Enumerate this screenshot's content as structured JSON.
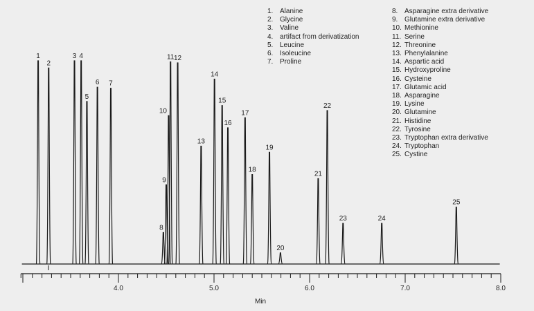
{
  "chart_data": {
    "type": "line",
    "title": "",
    "xlabel": "Min",
    "ylabel": "",
    "xlim": [
      2.98,
      8.0
    ],
    "ylim": [
      0,
      100
    ],
    "x_ticks": [
      "4.0",
      "5.0",
      "6.0",
      "7.0",
      "8.0"
    ],
    "x_tick_values": [
      4.0,
      5.0,
      6.0,
      7.0,
      8.0
    ],
    "minor_tick_step": 0.1,
    "grid": false,
    "peaks": [
      {
        "label": "1",
        "rt": 3.16,
        "height": 100
      },
      {
        "label": "2",
        "rt": 3.27,
        "height": 96.5
      },
      {
        "label": "3",
        "rt": 3.54,
        "height": 100
      },
      {
        "label": "4",
        "rt": 3.61,
        "height": 100
      },
      {
        "label": "5",
        "rt": 3.67,
        "height": 80
      },
      {
        "label": "6",
        "rt": 3.78,
        "height": 87
      },
      {
        "label": "7",
        "rt": 3.92,
        "height": 86.5
      },
      {
        "label": "8",
        "rt": 4.47,
        "height": 15.5
      },
      {
        "label": "9",
        "rt": 4.5,
        "height": 39
      },
      {
        "label": "10",
        "rt": 4.525,
        "height": 73
      },
      {
        "label": "11",
        "rt": 4.545,
        "height": 99.5
      },
      {
        "label": "12",
        "rt": 4.62,
        "height": 99
      },
      {
        "label": "13",
        "rt": 4.865,
        "height": 58
      },
      {
        "label": "14",
        "rt": 5.005,
        "height": 91
      },
      {
        "label": "15",
        "rt": 5.085,
        "height": 78
      },
      {
        "label": "16",
        "rt": 5.145,
        "height": 67
      },
      {
        "label": "17",
        "rt": 5.325,
        "height": 72
      },
      {
        "label": "18",
        "rt": 5.4,
        "height": 44
      },
      {
        "label": "19",
        "rt": 5.58,
        "height": 55
      },
      {
        "label": "20",
        "rt": 5.695,
        "height": 5.5
      },
      {
        "label": "21",
        "rt": 6.09,
        "height": 42
      },
      {
        "label": "22",
        "rt": 6.185,
        "height": 75.5
      },
      {
        "label": "23",
        "rt": 6.35,
        "height": 20
      },
      {
        "label": "24",
        "rt": 6.755,
        "height": 20
      },
      {
        "label": "25",
        "rt": 7.535,
        "height": 28
      }
    ],
    "legend": {
      "placement": "top-right",
      "column1": [
        {
          "num": "1.",
          "name": "Alanine"
        },
        {
          "num": "2.",
          "name": "Glycine"
        },
        {
          "num": "3.",
          "name": "Valine"
        },
        {
          "num": "4.",
          "name": "artifact from derivatization"
        },
        {
          "num": "5.",
          "name": "Leucine"
        },
        {
          "num": "6.",
          "name": "Isoleucine"
        },
        {
          "num": "7.",
          "name": "Proline"
        }
      ],
      "column2": [
        {
          "num": "8.",
          "name": "Asparagine extra derivative"
        },
        {
          "num": "9.",
          "name": "Glutamine extra derivative"
        },
        {
          "num": "10.",
          "name": "Methionine"
        },
        {
          "num": "11.",
          "name": "Serine"
        },
        {
          "num": "12.",
          "name": "Threonine"
        },
        {
          "num": "13.",
          "name": "Phenylalanine"
        },
        {
          "num": "14.",
          "name": "Aspartic acid"
        },
        {
          "num": "15.",
          "name": "Hydroxyproline"
        },
        {
          "num": "16.",
          "name": "Cysteine"
        },
        {
          "num": "17.",
          "name": "Glutamic acid"
        },
        {
          "num": "18.",
          "name": "Asparagine"
        },
        {
          "num": "19.",
          "name": "Lysine"
        },
        {
          "num": "20.",
          "name": "Glutamine"
        },
        {
          "num": "21.",
          "name": "Histidine"
        },
        {
          "num": "22.",
          "name": "Tyrosine"
        },
        {
          "num": "23.",
          "name": "Tryptophan extra derivative"
        },
        {
          "num": "24.",
          "name": "Tryptophan"
        },
        {
          "num": "25.",
          "name": "Cystine"
        }
      ]
    },
    "colors": {
      "trace": "#1a1a1a",
      "background": "#eeeeee"
    }
  }
}
